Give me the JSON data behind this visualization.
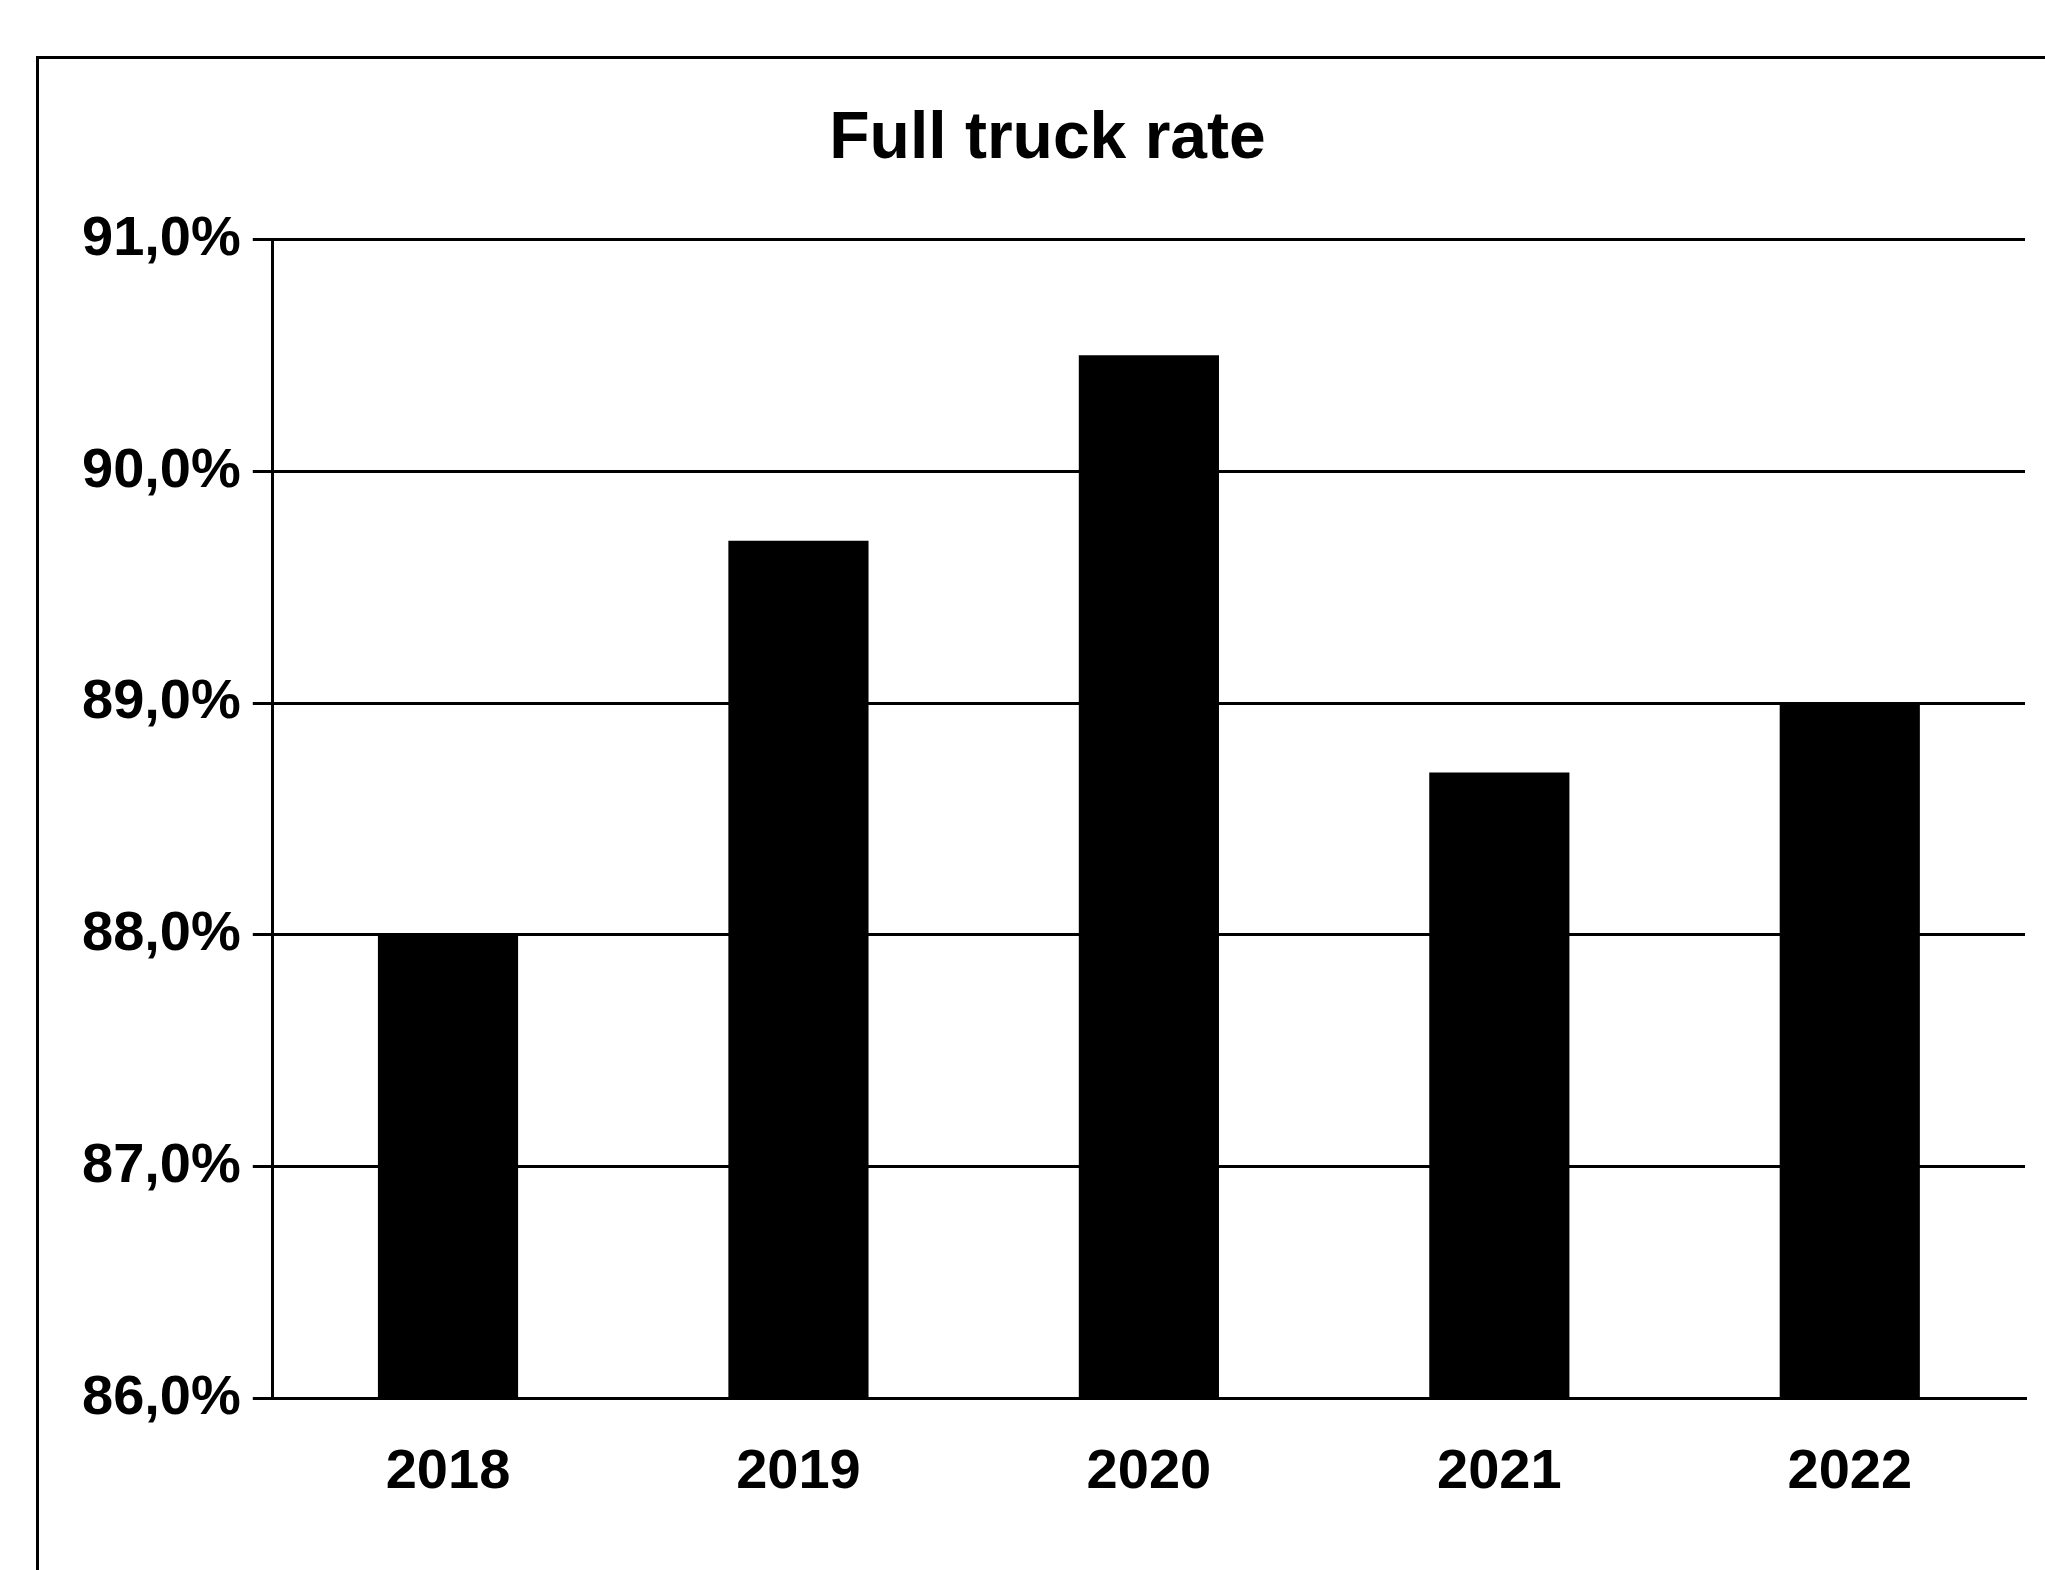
{
  "chart_data": {
    "type": "bar",
    "title": "Full truck rate",
    "categories": [
      "2018",
      "2019",
      "2020",
      "2021",
      "2022"
    ],
    "values": [
      88.0,
      89.7,
      90.5,
      88.7,
      89.0
    ],
    "color": "#000000",
    "ylim": [
      86,
      91
    ],
    "yticks": [
      {
        "value": 86,
        "label": "86,0%"
      },
      {
        "value": 87,
        "label": "87,0%"
      },
      {
        "value": 88,
        "label": "88,0%"
      },
      {
        "value": 89,
        "label": "89,0%"
      },
      {
        "value": 90,
        "label": "90,0%"
      },
      {
        "value": 91,
        "label": "91,0%"
      }
    ],
    "grid": "y",
    "legend": false
  }
}
